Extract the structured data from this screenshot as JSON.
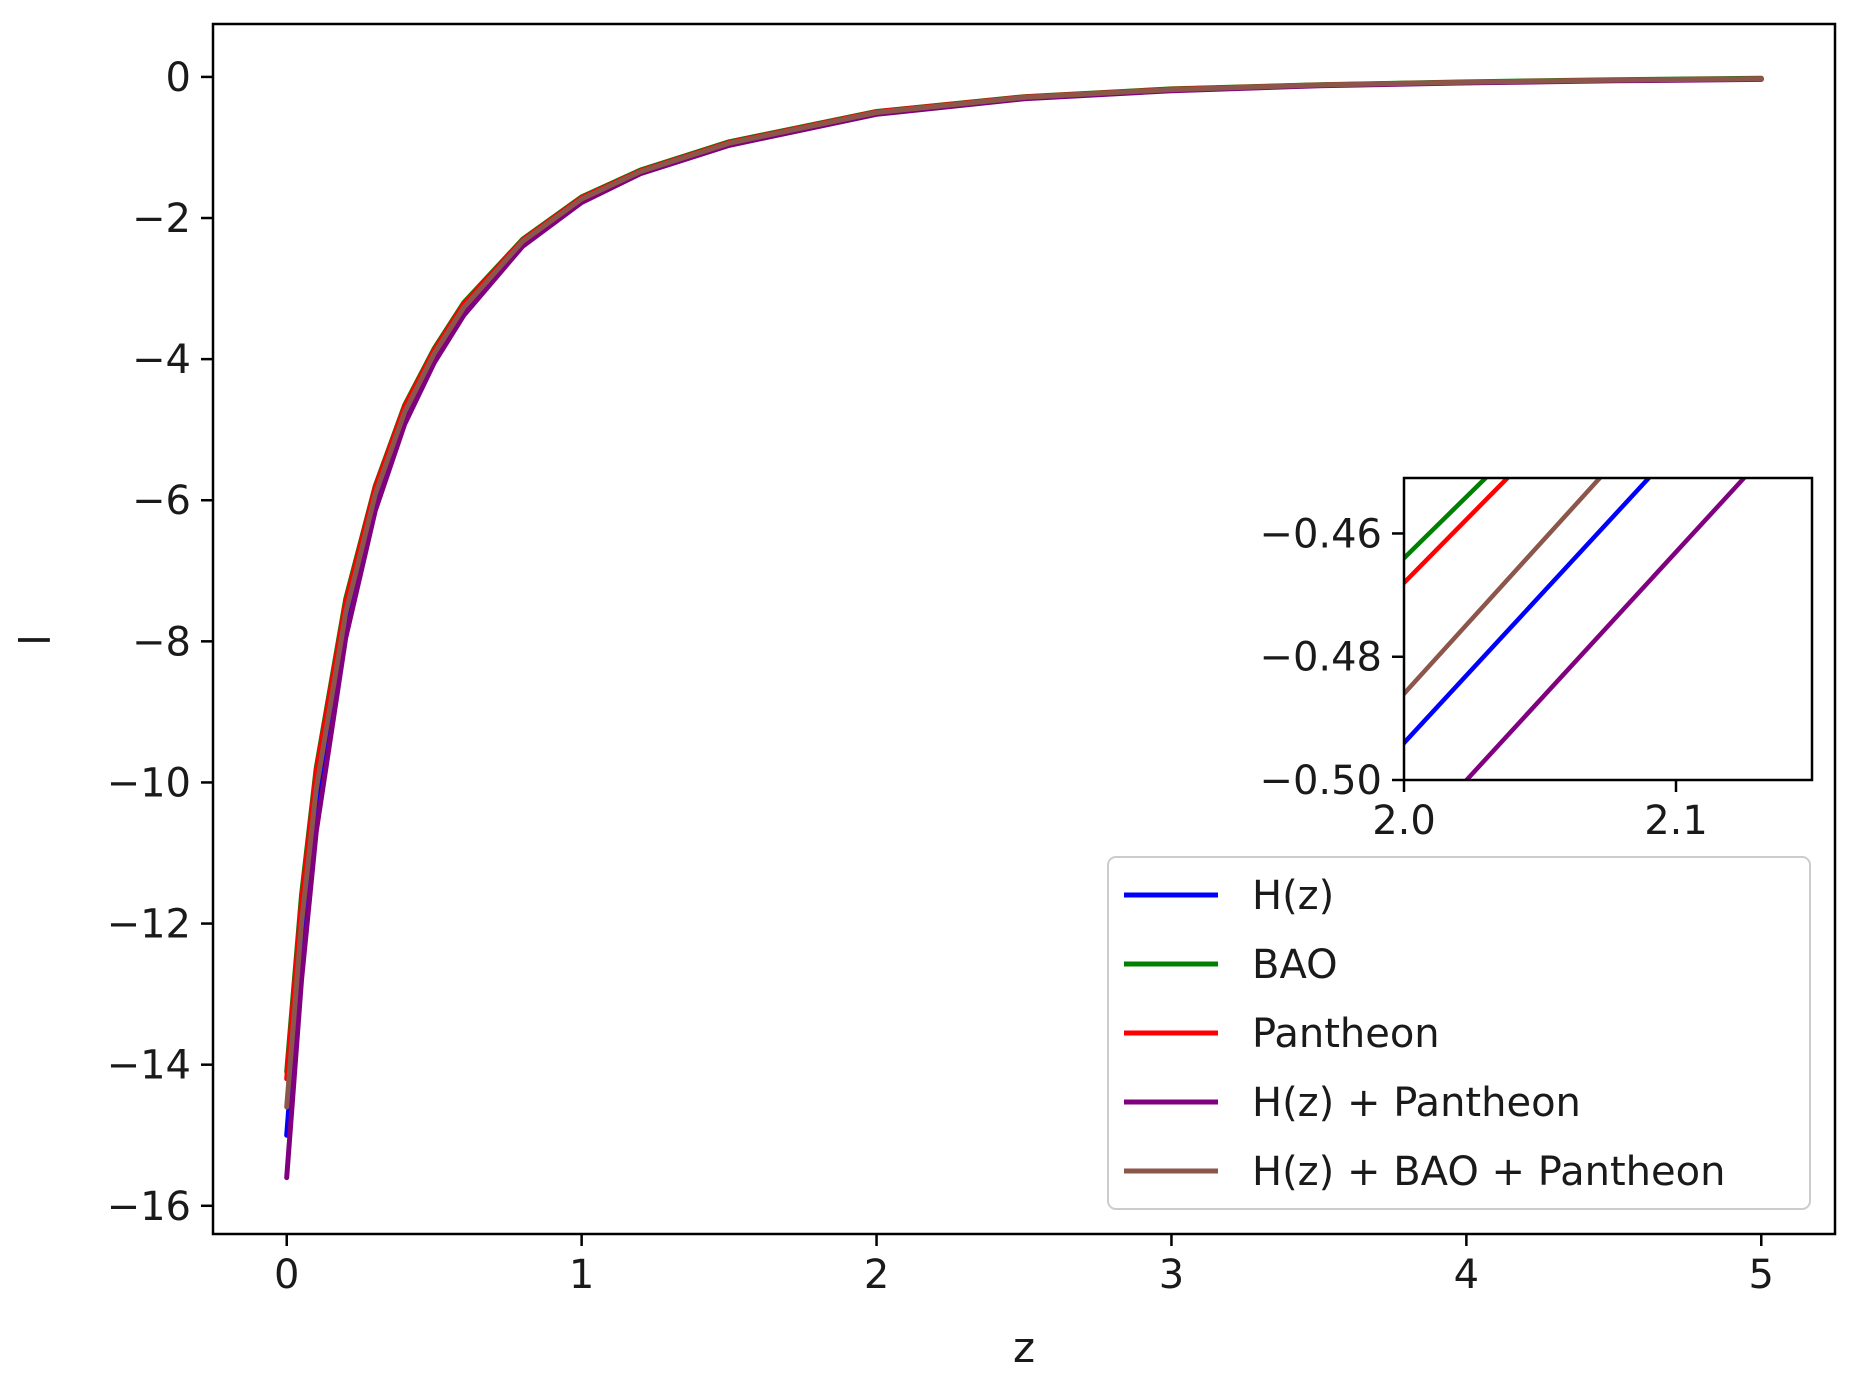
{
  "chart_data": [
    {
      "type": "line",
      "xlabel": "z",
      "ylabel": "l",
      "xlim": [
        -0.25,
        5.25
      ],
      "ylim": [
        -16.4,
        0.75
      ],
      "xticks": [
        0,
        1,
        2,
        3,
        4,
        5
      ],
      "xtick_labels": [
        "0",
        "1",
        "2",
        "3",
        "4",
        "5"
      ],
      "yticks": [
        0,
        -2,
        -4,
        -6,
        -8,
        -10,
        -12,
        -14,
        -16
      ],
      "ytick_labels": [
        "0",
        "−2",
        "−4",
        "−6",
        "−8",
        "−10",
        "−12",
        "−14",
        "−16"
      ],
      "grid": false,
      "legend_position": "lower-right",
      "x": [
        0,
        0.05,
        0.1,
        0.2,
        0.3,
        0.4,
        0.5,
        0.6,
        0.8,
        1.0,
        1.2,
        1.5,
        2.0,
        2.5,
        3.0,
        3.5,
        4.0,
        4.5,
        5.0
      ],
      "series": [
        {
          "name": "H(z)",
          "color": "#0000ff",
          "values": [
            -15.0,
            -12.3,
            -10.3,
            -7.7,
            -6.0,
            -4.8,
            -3.95,
            -3.3,
            -2.35,
            -1.75,
            -1.35,
            -0.95,
            -0.52,
            -0.3,
            -0.19,
            -0.12,
            -0.08,
            -0.05,
            -0.03
          ]
        },
        {
          "name": "BAO",
          "color": "#008000",
          "values": [
            -14.1,
            -11.6,
            -9.8,
            -7.4,
            -5.8,
            -4.65,
            -3.85,
            -3.2,
            -2.3,
            -1.7,
            -1.32,
            -0.92,
            -0.49,
            -0.28,
            -0.17,
            -0.11,
            -0.07,
            -0.04,
            -0.02
          ]
        },
        {
          "name": "Pantheon",
          "color": "#ff0000",
          "values": [
            -14.2,
            -11.7,
            -9.85,
            -7.45,
            -5.82,
            -4.67,
            -3.87,
            -3.22,
            -2.31,
            -1.71,
            -1.33,
            -0.93,
            -0.495,
            -0.285,
            -0.175,
            -0.115,
            -0.075,
            -0.045,
            -0.025
          ]
        },
        {
          "name": "H(z) + Pantheon",
          "color": "#800080",
          "values": [
            -15.6,
            -12.8,
            -10.7,
            -7.95,
            -6.15,
            -4.92,
            -4.05,
            -3.38,
            -2.4,
            -1.78,
            -1.37,
            -0.97,
            -0.53,
            -0.31,
            -0.195,
            -0.125,
            -0.085,
            -0.055,
            -0.035
          ]
        },
        {
          "name": "H(z) + BAO + Pantheon",
          "color": "#8c564b",
          "values": [
            -14.6,
            -12.0,
            -10.1,
            -7.6,
            -5.92,
            -4.75,
            -3.92,
            -3.27,
            -2.33,
            -1.73,
            -1.34,
            -0.94,
            -0.505,
            -0.29,
            -0.18,
            -0.115,
            -0.075,
            -0.045,
            -0.025
          ]
        }
      ]
    },
    {
      "type": "line",
      "role": "inset",
      "xlim": [
        2.0,
        2.15
      ],
      "ylim": [
        -0.5,
        -0.451
      ],
      "xticks": [
        2.0,
        2.1
      ],
      "xtick_labels": [
        "2.0",
        "2.1"
      ],
      "yticks": [
        -0.46,
        -0.48,
        -0.5
      ],
      "ytick_labels": [
        "−0.46",
        "−0.48",
        "−0.50"
      ],
      "grid": false,
      "series": [
        {
          "name": "H(z)",
          "color": "#0000ff",
          "points": [
            [
              2.0,
              -0.494
            ],
            [
              2.09,
              -0.451
            ]
          ]
        },
        {
          "name": "BAO",
          "color": "#008000",
          "points": [
            [
              2.0,
              -0.464
            ],
            [
              2.03,
              -0.451
            ]
          ]
        },
        {
          "name": "Pantheon",
          "color": "#ff0000",
          "points": [
            [
              2.0,
              -0.468
            ],
            [
              2.038,
              -0.451
            ]
          ]
        },
        {
          "name": "H(z) + Pantheon",
          "color": "#800080",
          "points": [
            [
              2.023,
              -0.5
            ],
            [
              2.125,
              -0.451
            ]
          ]
        },
        {
          "name": "H(z) + BAO + Pantheon",
          "color": "#8c564b",
          "points": [
            [
              2.0,
              -0.486
            ],
            [
              2.072,
              -0.451
            ]
          ]
        }
      ]
    }
  ]
}
